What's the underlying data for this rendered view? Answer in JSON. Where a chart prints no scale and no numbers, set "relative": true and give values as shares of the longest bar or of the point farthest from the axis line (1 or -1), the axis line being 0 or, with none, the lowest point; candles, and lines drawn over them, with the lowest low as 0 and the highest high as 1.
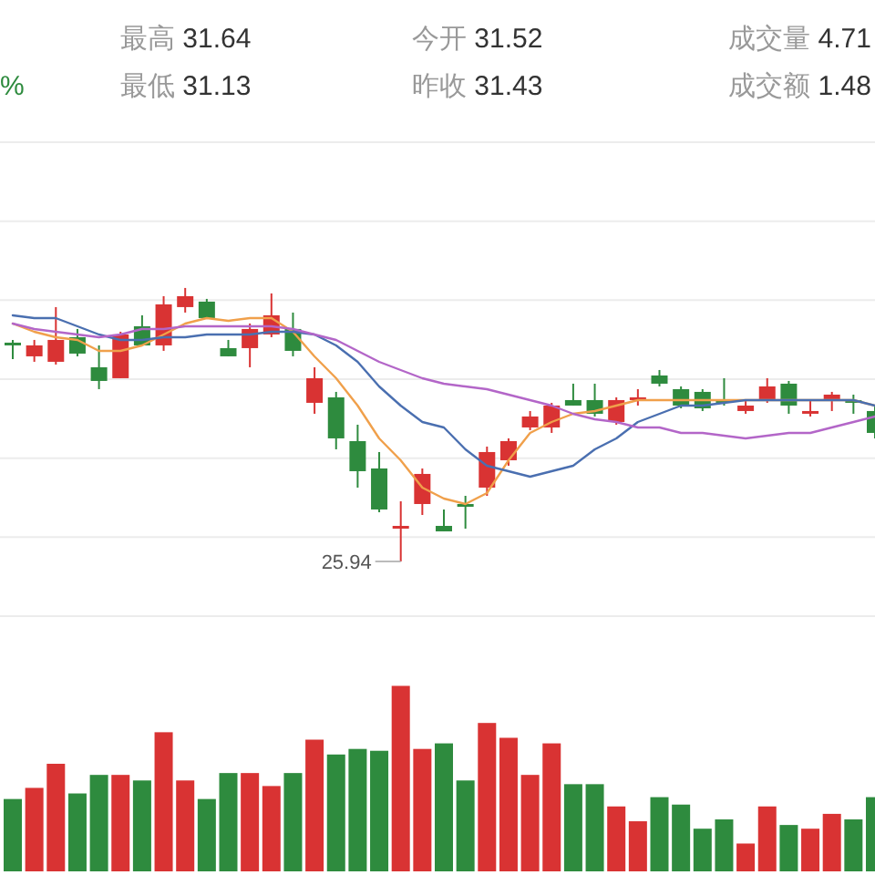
{
  "chart_data": [
    {
      "type": "candlestick",
      "relative": true,
      "grid": "y",
      "categories": [
        null,
        null,
        null,
        null,
        null,
        null,
        null,
        null,
        null,
        null,
        null,
        null,
        null,
        null,
        null,
        null,
        null,
        null,
        null,
        null,
        null,
        null,
        null,
        null,
        null,
        null,
        null,
        null,
        null,
        null,
        null,
        null,
        null,
        null,
        null,
        null,
        null,
        null,
        null,
        null,
        null
      ],
      "ohlc": [
        [
          0.8,
          0.81,
          0.74,
          0.79
        ],
        [
          0.75,
          0.81,
          0.73,
          0.79
        ],
        [
          0.73,
          0.93,
          0.72,
          0.81
        ],
        [
          0.82,
          0.85,
          0.75,
          0.76
        ],
        [
          0.71,
          0.79,
          0.63,
          0.66
        ],
        [
          0.67,
          0.84,
          0.67,
          0.83
        ],
        [
          0.86,
          0.9,
          0.79,
          0.79
        ],
        [
          0.79,
          0.97,
          0.77,
          0.94
        ],
        [
          0.93,
          1.0,
          0.91,
          0.97
        ],
        [
          0.95,
          0.96,
          0.89,
          0.89
        ],
        [
          0.78,
          0.81,
          0.75,
          0.75
        ],
        [
          0.78,
          0.87,
          0.71,
          0.85
        ],
        [
          0.83,
          0.98,
          0.82,
          0.9
        ],
        [
          0.85,
          0.91,
          0.75,
          0.77
        ],
        [
          0.58,
          0.71,
          0.54,
          0.67
        ],
        [
          0.6,
          0.62,
          0.41,
          0.45
        ],
        [
          0.44,
          0.5,
          0.27,
          0.33
        ],
        [
          0.34,
          0.4,
          0.18,
          0.19
        ],
        [
          0.12,
          0.22,
          0,
          0.13
        ],
        [
          0.21,
          0.34,
          0.17,
          0.32
        ],
        [
          0.13,
          0.19,
          0.11,
          0.11
        ],
        [
          0.21,
          0.24,
          0.12,
          0.2
        ],
        [
          0.27,
          0.42,
          0.24,
          0.4
        ],
        [
          0.37,
          0.45,
          0.35,
          0.44
        ],
        [
          0.49,
          0.55,
          0.48,
          0.53
        ],
        [
          0.49,
          0.58,
          0.47,
          0.57
        ],
        [
          0.59,
          0.65,
          0.57,
          0.57
        ],
        [
          0.59,
          0.65,
          0.53,
          0.54
        ],
        [
          0.51,
          0.6,
          0.5,
          0.59
        ],
        [
          0.59,
          0.63,
          0.57,
          0.6
        ],
        [
          0.68,
          0.7,
          0.64,
          0.65
        ],
        [
          0.63,
          0.64,
          0.56,
          0.57
        ],
        [
          0.62,
          0.63,
          0.55,
          0.56
        ],
        [
          0.59,
          0.67,
          0.57,
          0.58
        ],
        [
          0.55,
          0.59,
          0.54,
          0.57
        ],
        [
          0.59,
          0.67,
          0.58,
          0.64
        ],
        [
          0.65,
          0.66,
          0.54,
          0.57
        ],
        [
          0.54,
          0.59,
          0.53,
          0.55
        ],
        [
          0.59,
          0.62,
          0.55,
          0.61
        ],
        [
          0.59,
          0.61,
          0.54,
          0.58
        ],
        [
          0.55,
          0.57,
          0.45,
          0.47
        ]
      ],
      "series": [
        {
          "type": "line",
          "color": "#f0a04b",
          "values": [
            0.87,
            0.84,
            0.82,
            0.81,
            0.77,
            0.77,
            0.79,
            0.83,
            0.87,
            0.89,
            0.88,
            0.89,
            0.89,
            0.84,
            0.75,
            0.67,
            0.57,
            0.45,
            0.37,
            0.27,
            0.23,
            0.21,
            0.25,
            0.37,
            0.47,
            0.51,
            0.54,
            0.55,
            0.57,
            0.59,
            0.59,
            0.59,
            0.59,
            0.59,
            0.59,
            0.59,
            0.59,
            0.59,
            0.59,
            0.59,
            0.57
          ]
        },
        {
          "type": "line",
          "color": "#4a6fb0",
          "values": [
            0.9,
            0.89,
            0.89,
            0.86,
            0.83,
            0.81,
            0.81,
            0.82,
            0.82,
            0.83,
            0.83,
            0.83,
            0.84,
            0.84,
            0.83,
            0.79,
            0.73,
            0.64,
            0.57,
            0.51,
            0.49,
            0.41,
            0.35,
            0.33,
            0.31,
            0.33,
            0.35,
            0.41,
            0.45,
            0.51,
            0.54,
            0.57,
            0.57,
            0.58,
            0.59,
            0.59,
            0.59,
            0.59,
            0.59,
            0.59,
            0.57
          ]
        },
        {
          "type": "line",
          "color": "#b366c8",
          "values": [
            0.87,
            0.85,
            0.84,
            0.83,
            0.82,
            0.83,
            0.85,
            0.85,
            0.86,
            0.86,
            0.86,
            0.86,
            0.86,
            0.85,
            0.83,
            0.81,
            0.77,
            0.73,
            0.7,
            0.67,
            0.65,
            0.64,
            0.63,
            0.61,
            0.59,
            0.57,
            0.54,
            0.52,
            0.51,
            0.49,
            0.49,
            0.47,
            0.47,
            0.46,
            0.45,
            0.46,
            0.47,
            0.47,
            0.49,
            0.51,
            0.53
          ]
        }
      ],
      "annotations": [
        "最高 31.64",
        "今开 31.52",
        "成交量 4.71",
        "%",
        "最低 31.13",
        "昨收 31.43",
        "成交额 1.48",
        "25.94"
      ]
    },
    {
      "type": "bar",
      "relative": true,
      "categories": [
        null,
        null,
        null,
        null,
        null,
        null,
        null,
        null,
        null,
        null,
        null,
        null,
        null,
        null,
        null,
        null,
        null,
        null,
        null,
        null,
        null,
        null,
        null,
        null,
        null,
        null,
        null,
        null,
        null,
        null,
        null,
        null,
        null,
        null,
        null,
        null,
        null,
        null,
        null,
        null,
        null
      ],
      "values": [
        0.39,
        0.45,
        0.58,
        0.42,
        0.52,
        0.52,
        0.49,
        0.75,
        0.49,
        0.39,
        0.53,
        0.53,
        0.46,
        0.53,
        0.71,
        0.63,
        0.66,
        0.65,
        1,
        0.66,
        0.69,
        0.49,
        0.8,
        0.72,
        0.52,
        0.69,
        0.47,
        0.47,
        0.35,
        0.27,
        0.4,
        0.36,
        0.23,
        0.28,
        0.15,
        0.35,
        0.25,
        0.23,
        0.31,
        0.28,
        0.4
      ],
      "colors": [
        "#2e8b3e",
        "#d93333",
        "#d93333",
        "#2e8b3e",
        "#2e8b3e",
        "#d93333",
        "#2e8b3e",
        "#d93333",
        "#d93333",
        "#2e8b3e",
        "#2e8b3e",
        "#d93333",
        "#d93333",
        "#2e8b3e",
        "#d93333",
        "#2e8b3e",
        "#2e8b3e",
        "#2e8b3e",
        "#d93333",
        "#d93333",
        "#2e8b3e",
        "#2e8b3e",
        "#d93333",
        "#d93333",
        "#d93333",
        "#d93333",
        "#2e8b3e",
        "#2e8b3e",
        "#d93333",
        "#d93333",
        "#2e8b3e",
        "#2e8b3e",
        "#2e8b3e",
        "#2e8b3e",
        "#d93333",
        "#d93333",
        "#2e8b3e",
        "#d93333",
        "#d93333",
        "#2e8b3e",
        "#2e8b3e"
      ]
    }
  ]
}
